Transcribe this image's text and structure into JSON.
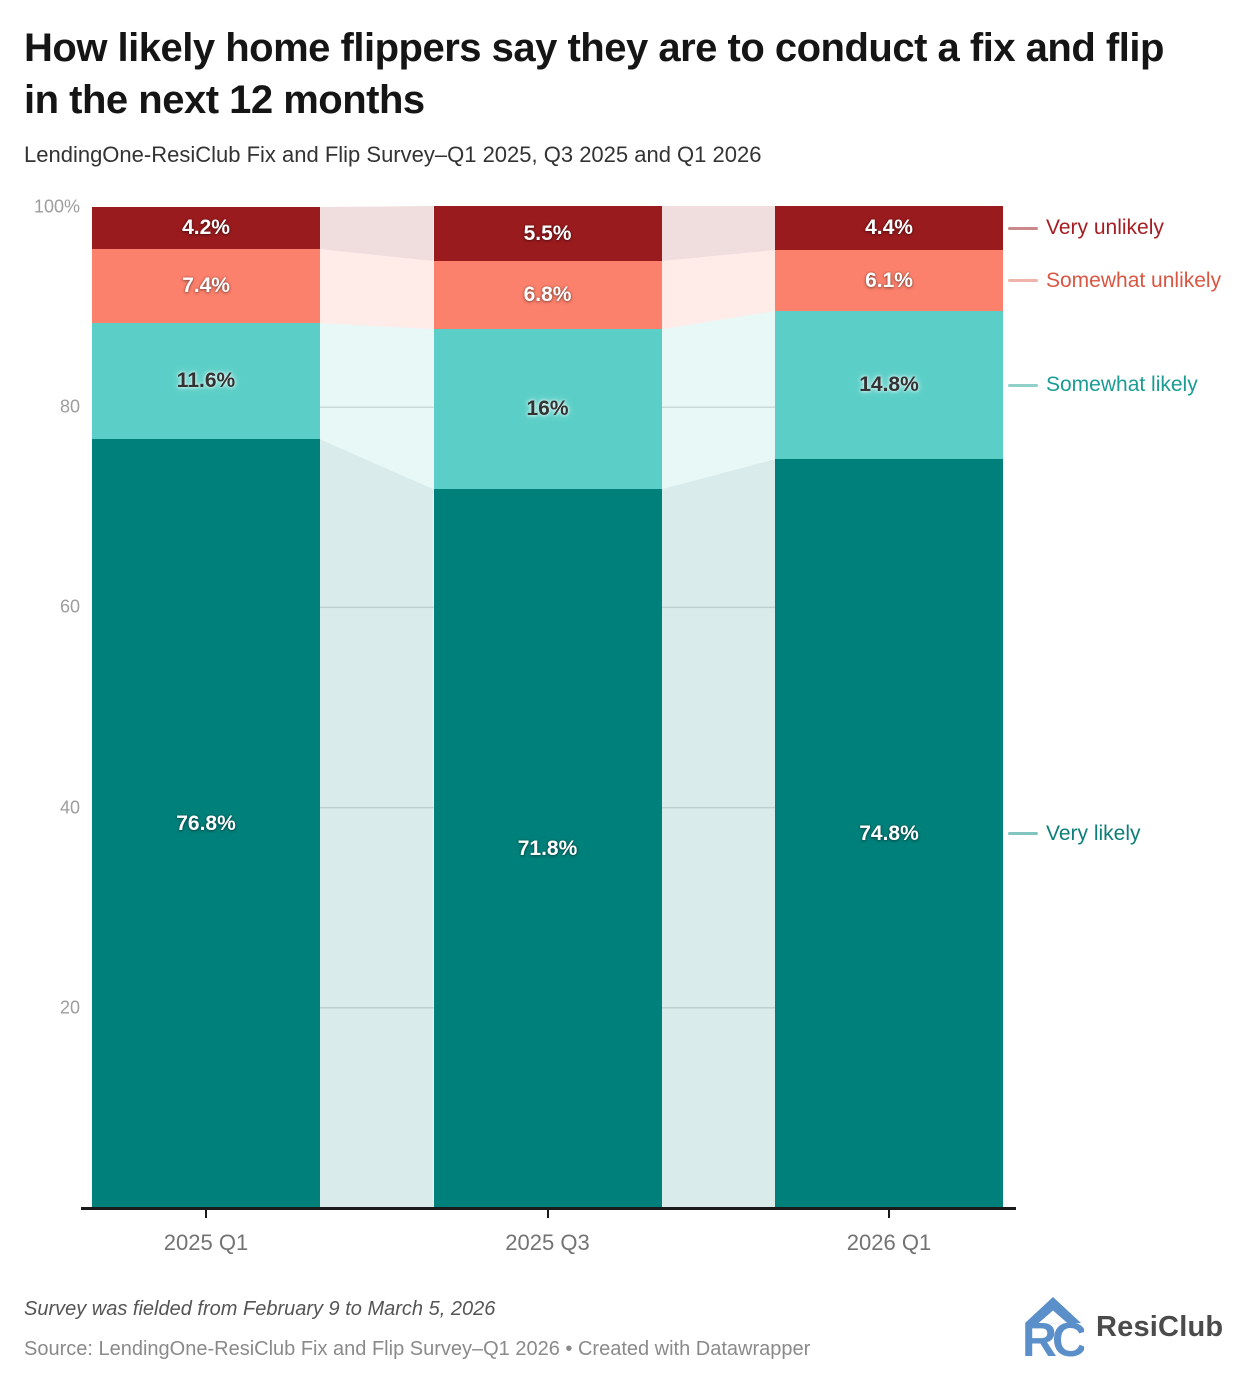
{
  "header": {
    "title": "How likely home flippers say they are to conduct a fix and flip in the next 12 months",
    "subtitle": "LendingOne-ResiClub Fix and Flip Survey–Q1 2025, Q3 2025 and Q1 2026"
  },
  "footer": {
    "note": "Survey was fielded from February 9 to March 5, 2026",
    "source": "Source: LendingOne-ResiClub Fix and Flip Survey–Q1 2026 • Created with Datawrapper",
    "logo_text": "ResiClub",
    "logo_color": "#5b8fc9"
  },
  "chart_data": {
    "type": "bar",
    "stacked": true,
    "title": "How likely home flippers say they are to conduct a fix and flip in the next 12 months",
    "xlabel": "",
    "ylabel": "",
    "ylim": [
      0,
      100
    ],
    "grid": "horizontal",
    "legend_position": "right",
    "categories": [
      "2025 Q1",
      "2025 Q3",
      "2026 Q1"
    ],
    "series": [
      {
        "name": "Very likely",
        "color": "#00807a",
        "values": [
          76.8,
          71.8,
          74.8
        ],
        "labels": [
          "76.8%",
          "71.8%",
          "74.8%"
        ],
        "label_style": "light"
      },
      {
        "name": "Somewhat likely",
        "color": "#5bcfc7",
        "values": [
          11.6,
          16,
          14.8
        ],
        "labels": [
          "11.6%",
          "16%",
          "14.8%"
        ],
        "label_style": "dark"
      },
      {
        "name": "Somewhat unlikely",
        "color": "#fc816c",
        "values": [
          7.4,
          6.8,
          6.1
        ],
        "labels": [
          "7.4%",
          "6.8%",
          "6.1%"
        ],
        "label_style": "light"
      },
      {
        "name": "Very unlikely",
        "color": "#9a1b1e",
        "values": [
          4.2,
          5.5,
          4.4
        ],
        "labels": [
          "4.2%",
          "5.5%",
          "4.4%"
        ],
        "label_style": "light"
      }
    ],
    "yticks": [
      {
        "value": 100,
        "label": "100%"
      },
      {
        "value": 80,
        "label": "80"
      },
      {
        "value": 60,
        "label": "60"
      },
      {
        "value": 40,
        "label": "40"
      },
      {
        "value": 20,
        "label": "20"
      }
    ],
    "legend": [
      {
        "series": "Very unlikely",
        "label": "Very unlikely",
        "text_color": "#a51c21",
        "line_color": "#cb898b"
      },
      {
        "series": "Somewhat unlikely",
        "label": "Somewhat unlikely",
        "text_color": "#d95642",
        "line_color": "#f0b4aa"
      },
      {
        "series": "Somewhat likely",
        "label": "Somewhat likely",
        "text_color": "#1a9c94",
        "line_color": "#90d0ca"
      },
      {
        "series": "Very likely",
        "label": "Very likely",
        "text_color": "#0d7e79",
        "line_color": "#82c4bf"
      }
    ]
  }
}
